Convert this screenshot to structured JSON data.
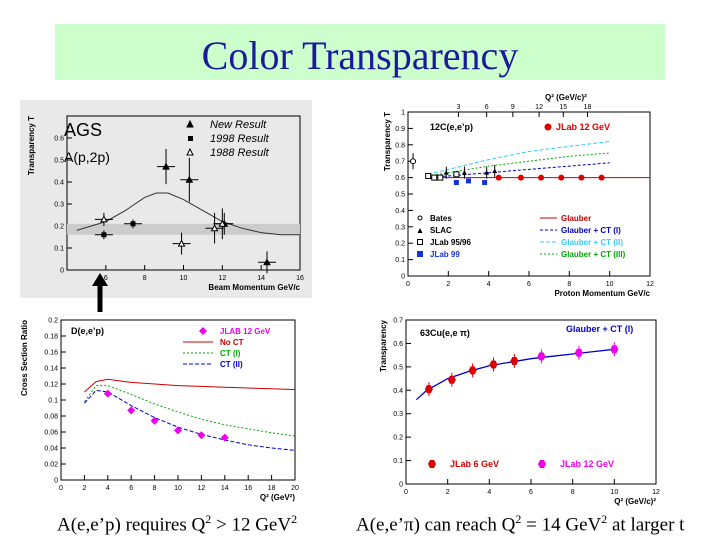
{
  "slide": {
    "title": "Color Transparency",
    "caption_left": {
      "prefix": "A(e,e’p) requires Q",
      "sup": "2",
      "middle": " > 12 GeV",
      "sup2": "2"
    },
    "caption_right": {
      "prefix": "A(e,e’",
      "pi": "π",
      "middle": ") can reach Q",
      "sup": "2",
      "middle2": " = 14 GeV",
      "sup2": "2",
      "suffix": " at larger t"
    }
  },
  "colors": {
    "banner_bg": "#ccffcc",
    "title": "#1a1a9a",
    "jlab12": "#ee00ee",
    "jlab12_red": "#dd0000",
    "glauber": "#cc0000",
    "ct1": "#0000cc",
    "ct2": "#33ccff",
    "ct3": "#00aa00",
    "jlab99": "#1133dd"
  },
  "chart_data": [
    {
      "id": "ags",
      "type": "scatter",
      "title": "AGS",
      "subtitle": "A(p,2p)",
      "xlabel": "Beam Momentum GeV/c",
      "ylabel": "Transparency T",
      "xlim": [
        4,
        16
      ],
      "ylim": [
        0,
        0.7
      ],
      "xticks": [
        "6",
        "8",
        "10",
        "12",
        "14",
        "16"
      ],
      "yticks": [
        "0",
        "0.1",
        "0.2",
        "0.3",
        "0.4",
        "0.5",
        "0.6"
      ],
      "legend": [
        "New Result",
        "1998 Result",
        "1988 Result"
      ],
      "series": [
        {
          "name": "New Result",
          "x": [
            9.1,
            10.3,
            12.1,
            14.3
          ],
          "y": [
            0.47,
            0.41,
            0.21,
            0.035
          ],
          "yerr": [
            0.08,
            0.1,
            0.05,
            0.05
          ]
        },
        {
          "name": "1998 Result",
          "x": [
            5.9,
            7.4
          ],
          "y": [
            0.16,
            0.21
          ],
          "yerr": [
            0.02,
            0.02
          ]
        },
        {
          "name": "1988 Result",
          "x": [
            5.9,
            9.9,
            11.6,
            12.0
          ],
          "y": [
            0.23,
            0.12,
            0.19,
            0.21
          ],
          "yerr": [
            0.03,
            0.05,
            0.07,
            0.07
          ]
        }
      ],
      "curve": {
        "x": [
          4.5,
          6,
          7,
          8,
          8.6,
          9.2,
          10,
          11,
          12,
          13,
          14,
          15,
          16
        ],
        "y": [
          0.18,
          0.22,
          0.27,
          0.33,
          0.35,
          0.35,
          0.32,
          0.27,
          0.22,
          0.19,
          0.17,
          0.16,
          0.16
        ]
      }
    },
    {
      "id": "c12",
      "type": "scatter",
      "title": "12C(e,e’p)",
      "top_axis_label": "Q² (GeV/c)²",
      "top_ticks": [
        "3",
        "6",
        "9",
        "12",
        "15",
        "18"
      ],
      "xlabel": "Proton Momentum GeV/c",
      "ylabel": "Transparency T",
      "xlim": [
        0,
        12
      ],
      "ylim": [
        0,
        1
      ],
      "xticks": [
        "0",
        "2",
        "4",
        "6",
        "8",
        "10",
        "12"
      ],
      "yticks": [
        "0",
        "0.1",
        "0.2",
        "0.3",
        "0.4",
        "0.5",
        "0.6",
        "0.7",
        "0.8",
        "0.9",
        "1"
      ],
      "legend_points": [
        "Bates",
        "SLAC",
        "JLab 95/96",
        "JLab 99"
      ],
      "legend_lines": [
        "Glauber",
        "Glauber + CT (I)",
        "Glauber + CT (II)",
        "Glauber + CT (III)"
      ],
      "legend_top": "JLab 12 GeV",
      "series": [
        {
          "name": "JLab 12 GeV",
          "x": [
            4.5,
            5.6,
            6.6,
            7.6,
            8.6,
            9.6
          ],
          "y": [
            0.6,
            0.6,
            0.6,
            0.6,
            0.6,
            0.6
          ]
        },
        {
          "name": "JLab 99",
          "x": [
            2.4,
            3.0,
            3.8
          ],
          "y": [
            0.57,
            0.58,
            0.57
          ]
        },
        {
          "name": "JLab 95/96",
          "x": [
            1.0,
            1.3,
            1.6,
            2.4
          ],
          "y": [
            0.61,
            0.6,
            0.6,
            0.62
          ]
        },
        {
          "name": "SLAC",
          "x": [
            1.9,
            2.8,
            3.9,
            4.3
          ],
          "y": [
            0.63,
            0.63,
            0.63,
            0.64
          ]
        },
        {
          "name": "Bates",
          "x": [
            0.25
          ],
          "y": [
            0.7
          ]
        }
      ],
      "curves": [
        {
          "name": "Glauber",
          "x": [
            1,
            12
          ],
          "y": [
            0.6,
            0.6
          ]
        },
        {
          "name": "Glauber + CT (I)",
          "x": [
            1,
            2,
            4,
            6,
            8,
            10
          ],
          "y": [
            0.6,
            0.61,
            0.63,
            0.65,
            0.67,
            0.69
          ]
        },
        {
          "name": "Glauber + CT (II)",
          "x": [
            1,
            2,
            4,
            6,
            8,
            10
          ],
          "y": [
            0.62,
            0.65,
            0.71,
            0.76,
            0.79,
            0.82
          ]
        },
        {
          "name": "Glauber + CT (III)",
          "x": [
            1,
            2,
            4,
            6,
            8,
            10
          ],
          "y": [
            0.61,
            0.63,
            0.67,
            0.7,
            0.73,
            0.75
          ]
        }
      ]
    },
    {
      "id": "deuteron",
      "type": "line",
      "title": "D(e,e’p)",
      "xlabel": "Q² (GeV²)",
      "ylabel": "Cross Section Ratio",
      "xlim": [
        0,
        20
      ],
      "ylim": [
        0,
        0.2
      ],
      "xticks": [
        "0",
        "2",
        "4",
        "6",
        "8",
        "10",
        "12",
        "14",
        "16",
        "18",
        "20"
      ],
      "yticks": [
        "0",
        "0.02",
        "0.04",
        "0.06",
        "0.08",
        "0.1",
        "0.12",
        "0.14",
        "0.16",
        "0.18",
        "0.2"
      ],
      "legend": [
        "JLAB 12 GeV",
        "No CT",
        "CT (I)",
        "CT (II)"
      ],
      "points": {
        "name": "JLAB 12 GeV",
        "x": [
          4,
          6,
          8,
          10,
          12,
          14
        ],
        "y": [
          0.108,
          0.087,
          0.074,
          0.062,
          0.056,
          0.053
        ]
      },
      "curves": [
        {
          "name": "No CT",
          "x": [
            2,
            3,
            4,
            6,
            8,
            10,
            12,
            14,
            16,
            18,
            20
          ],
          "y": [
            0.11,
            0.123,
            0.126,
            0.122,
            0.12,
            0.118,
            0.117,
            0.116,
            0.115,
            0.114,
            0.113
          ]
        },
        {
          "name": "CT (I)",
          "x": [
            2,
            3,
            4,
            6,
            8,
            10,
            12,
            14,
            16,
            18,
            20
          ],
          "y": [
            0.098,
            0.118,
            0.118,
            0.107,
            0.095,
            0.085,
            0.076,
            0.069,
            0.064,
            0.059,
            0.055
          ]
        },
        {
          "name": "CT (II)",
          "x": [
            2,
            3,
            4,
            6,
            8,
            10,
            12,
            14,
            16,
            18,
            20
          ],
          "y": [
            0.096,
            0.112,
            0.11,
            0.093,
            0.078,
            0.066,
            0.057,
            0.05,
            0.044,
            0.04,
            0.037
          ]
        }
      ]
    },
    {
      "id": "cu63",
      "type": "scatter",
      "title": "63Cu(e,e π)",
      "xlabel": "Q² (GeV/c)²",
      "ylabel": "Transparency",
      "xlim": [
        0,
        12
      ],
      "ylim": [
        0,
        0.7
      ],
      "xticks": [
        "0",
        "2",
        "4",
        "6",
        "8",
        "10",
        "12"
      ],
      "yticks": [
        "0",
        "0.1",
        "0.2",
        "0.3",
        "0.4",
        "0.5",
        "0.6",
        "0.7"
      ],
      "curve_label": "Glauber + CT (I)",
      "legend": [
        "JLab 6 GeV",
        "JLab 12 GeV"
      ],
      "series": [
        {
          "name": "JLab 6 GeV",
          "x": [
            1.1,
            2.2,
            3.2,
            4.2,
            5.2
          ],
          "y": [
            0.405,
            0.445,
            0.485,
            0.51,
            0.525
          ]
        },
        {
          "name": "JLab 12 GeV",
          "x": [
            6.5,
            8.3,
            10.0
          ],
          "y": [
            0.545,
            0.56,
            0.575
          ]
        }
      ],
      "curve": {
        "x": [
          0.5,
          1,
          2,
          3,
          4,
          5,
          6,
          7,
          8,
          9,
          10
        ],
        "y": [
          0.36,
          0.4,
          0.45,
          0.48,
          0.505,
          0.52,
          0.535,
          0.545,
          0.555,
          0.565,
          0.575
        ]
      }
    }
  ]
}
